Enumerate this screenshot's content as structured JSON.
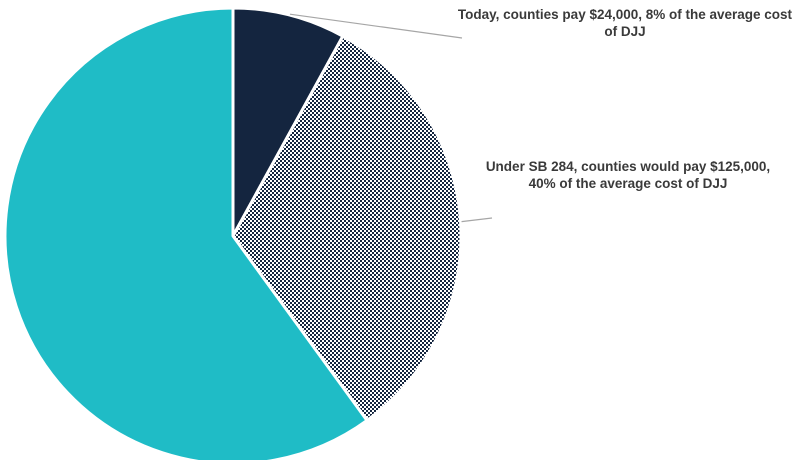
{
  "chart_data": {
    "type": "pie",
    "title": "",
    "slices": [
      {
        "label": "Today, counties pay $24,000, 8% of the average cost of DJJ",
        "value": 8,
        "color": "#14253f",
        "pattern": "solid"
      },
      {
        "label": "Under SB 284, counties would pay $125,000, 40% of the average cost of DJJ",
        "value": 32,
        "color": "#14253f",
        "pattern": "checkerboard"
      },
      {
        "label": "",
        "value": 60,
        "color": "#1fbcc6",
        "pattern": "solid"
      }
    ],
    "start_angle_deg": 0,
    "direction": "clockwise",
    "legend": "none"
  },
  "annotations": {
    "today": "Today, counties pay $24,000, 8% of the average cost of DJJ",
    "sb284": "Under SB 284, counties would pay $125,000, 40% of the average cost of DJJ"
  }
}
